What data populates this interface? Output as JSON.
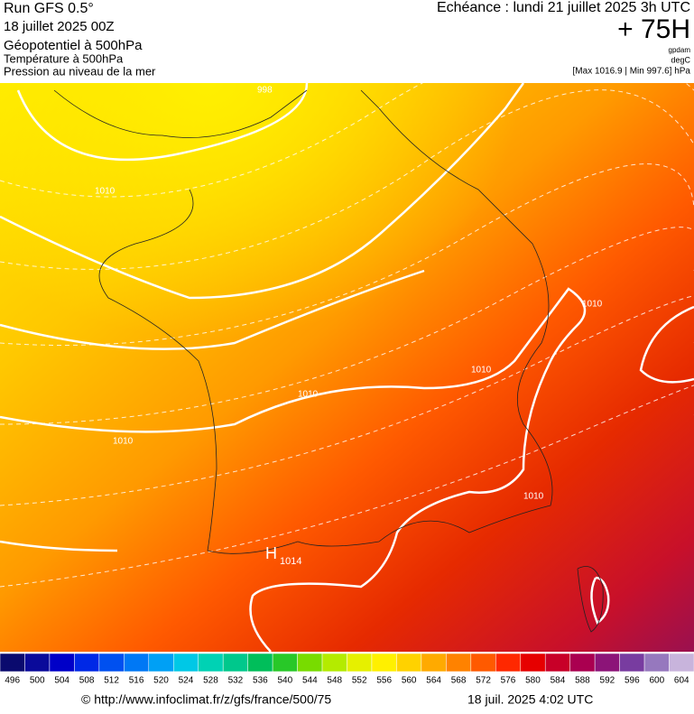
{
  "header": {
    "run": "Run GFS 0.5°",
    "date": "18 juillet 2025 00Z",
    "title": "Géopotentiel à 500hPa",
    "line2": "Température à 500hPa",
    "line3": "Pression au niveau de la mer",
    "echeance": "Echéance : lundi 21 juillet 2025 3h UTC",
    "lead": "+ 75H",
    "unit1": "gpdam",
    "unit2": "degC",
    "minmax": "[Max 1016.9 | Min 997.6] hPa"
  },
  "map_labels": [
    "998",
    "1010",
    "1010",
    "1010",
    "1010",
    "1010",
    "1010",
    "1014",
    "H"
  ],
  "colorbar": {
    "labels": [
      496,
      500,
      504,
      508,
      512,
      516,
      520,
      524,
      528,
      532,
      536,
      540,
      544,
      548,
      552,
      556,
      560,
      564,
      568,
      572,
      576,
      580,
      584,
      588,
      592,
      596,
      600,
      604
    ],
    "colors": [
      "#0a0a6e",
      "#0a0a9a",
      "#0000c8",
      "#0028e6",
      "#0050f0",
      "#0078f5",
      "#00a0f5",
      "#00c8e6",
      "#00d2b4",
      "#00c88c",
      "#00be5a",
      "#28c828",
      "#78dc00",
      "#b4eb00",
      "#e6f000",
      "#fff000",
      "#ffd200",
      "#ffaa00",
      "#ff8200",
      "#ff5a00",
      "#ff2800",
      "#e60000",
      "#c80028",
      "#aa0050",
      "#8c1478",
      "#783ca0",
      "#9678be",
      "#c8b4dc"
    ]
  },
  "footer": {
    "url": "© http://www.infoclimat.fr/z/gfs/france/500/75",
    "timestamp": "18 juil. 2025  4:02 UTC"
  }
}
